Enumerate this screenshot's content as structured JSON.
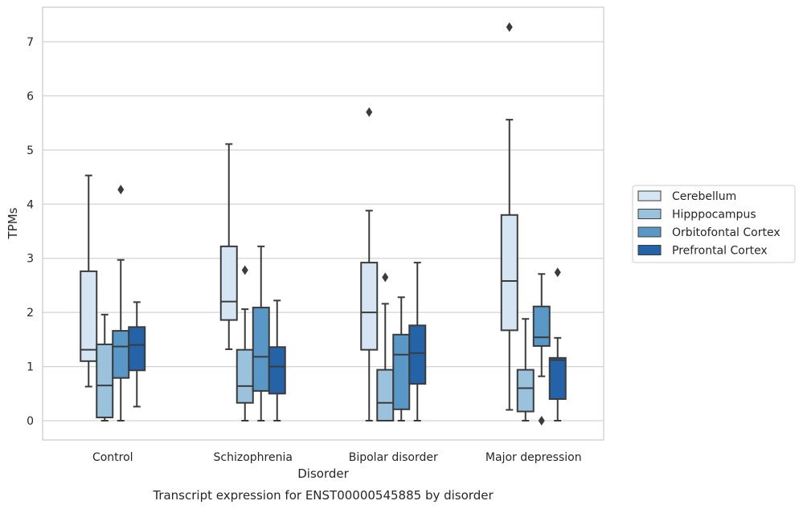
{
  "chart_data": {
    "type": "box",
    "xlabel": "Disorder",
    "ylabel": "TPMs",
    "caption": "Transcript expression for ENST00000545885 by disorder",
    "ylim": [
      -0.35,
      7.65
    ],
    "yticks": [
      0,
      1,
      2,
      3,
      4,
      5,
      6,
      7
    ],
    "grid": "horizontal",
    "legend_position": "right",
    "categories": [
      "Control",
      "Schizophrenia",
      "Bipolar disorder",
      "Major depression"
    ],
    "series": [
      {
        "name": "Cerebellum",
        "color": "#d6e5f4",
        "boxes": [
          {
            "whisker_low": 0.63,
            "q1": 1.1,
            "median": 1.31,
            "q3": 2.76,
            "whisker_high": 4.53,
            "outliers": []
          },
          {
            "whisker_low": 1.32,
            "q1": 1.86,
            "median": 2.2,
            "q3": 3.22,
            "whisker_high": 5.11,
            "outliers": []
          },
          {
            "whisker_low": 0.0,
            "q1": 1.31,
            "median": 2.0,
            "q3": 2.92,
            "whisker_high": 3.88,
            "outliers": [
              5.7
            ]
          },
          {
            "whisker_low": 0.2,
            "q1": 1.67,
            "median": 2.58,
            "q3": 3.8,
            "whisker_high": 5.56,
            "outliers": [
              7.27
            ]
          }
        ]
      },
      {
        "name": "Hipppocampus",
        "color": "#9ac2dd",
        "boxes": [
          {
            "whisker_low": 0.0,
            "q1": 0.06,
            "median": 0.65,
            "q3": 1.41,
            "whisker_high": 1.96,
            "outliers": []
          },
          {
            "whisker_low": 0.0,
            "q1": 0.33,
            "median": 0.64,
            "q3": 1.31,
            "whisker_high": 2.06,
            "outliers": [
              2.78
            ]
          },
          {
            "whisker_low": 0.0,
            "q1": 0.0,
            "median": 0.33,
            "q3": 0.94,
            "whisker_high": 2.16,
            "outliers": [
              2.65
            ]
          },
          {
            "whisker_low": 0.0,
            "q1": 0.17,
            "median": 0.6,
            "q3": 0.94,
            "whisker_high": 1.88,
            "outliers": []
          }
        ]
      },
      {
        "name": "Orbitofontal Cortex",
        "color": "#5897c6",
        "boxes": [
          {
            "whisker_low": 0.0,
            "q1": 0.79,
            "median": 1.37,
            "q3": 1.66,
            "whisker_high": 2.97,
            "outliers": [
              4.27
            ]
          },
          {
            "whisker_low": 0.0,
            "q1": 0.55,
            "median": 1.18,
            "q3": 2.09,
            "whisker_high": 3.22,
            "outliers": []
          },
          {
            "whisker_low": 0.0,
            "q1": 0.21,
            "median": 1.22,
            "q3": 1.59,
            "whisker_high": 2.28,
            "outliers": []
          },
          {
            "whisker_low": 0.82,
            "q1": 1.38,
            "median": 1.54,
            "q3": 2.11,
            "whisker_high": 2.71,
            "outliers": []
          }
        ]
      },
      {
        "name": "Prefrontal Cortex",
        "color": "#2563a8",
        "boxes": [
          {
            "whisker_low": 0.26,
            "q1": 0.93,
            "median": 1.4,
            "q3": 1.73,
            "whisker_high": 2.19,
            "outliers": []
          },
          {
            "whisker_low": 0.0,
            "q1": 0.5,
            "median": 1.0,
            "q3": 1.36,
            "whisker_high": 2.22,
            "outliers": []
          },
          {
            "whisker_low": 0.0,
            "q1": 0.68,
            "median": 1.25,
            "q3": 1.76,
            "whisker_high": 2.92,
            "outliers": []
          },
          {
            "whisker_low": 0.0,
            "q1": 0.4,
            "median": 1.12,
            "q3": 1.16,
            "whisker_high": 1.53,
            "outliers": [
              2.74
            ]
          }
        ]
      }
    ],
    "extra_outliers": [
      {
        "category": "Major depression",
        "series": "Orbitofontal Cortex",
        "value": 0.0
      }
    ]
  }
}
